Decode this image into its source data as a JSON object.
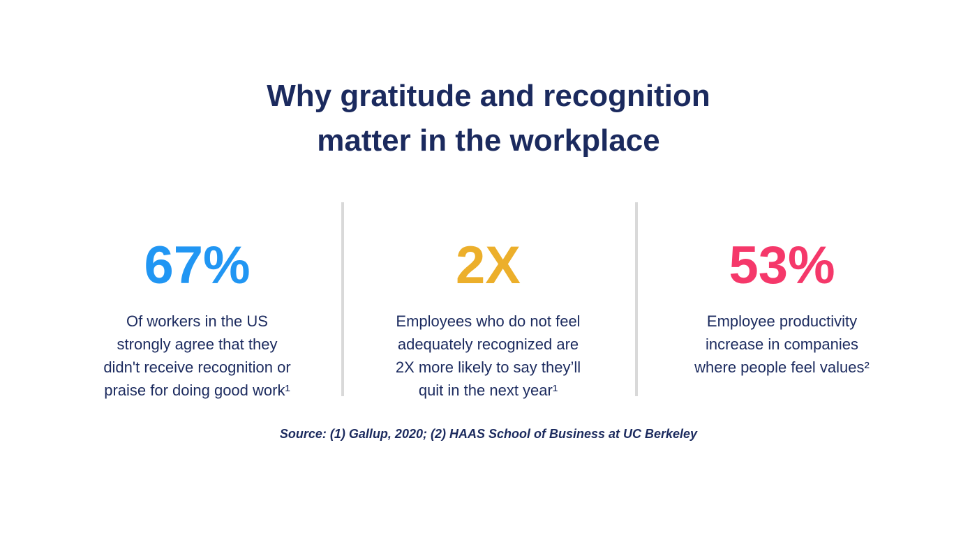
{
  "title": {
    "line1": "Why gratitude and recognition",
    "line2": "matter in the workplace"
  },
  "stats": [
    {
      "value": "67%",
      "color": "#2196f3",
      "desc": [
        "Of workers in the US",
        "strongly agree that they",
        "didn't receive recognition or",
        "praise for doing good work¹"
      ]
    },
    {
      "value": "2X",
      "color": "#ecaf2b",
      "desc": [
        "Employees who do not feel",
        "adequately recognized are",
        "2X more likely to say they’ll",
        "quit in the next year¹"
      ]
    },
    {
      "value": "53%",
      "color": "#f5386a",
      "desc": [
        "Employee productivity",
        "increase in companies",
        "where people feel values²"
      ]
    }
  ],
  "source": "Source: (1) Gallup, 2020; (2) HAAS School of Business at UC Berkeley",
  "colors": {
    "text": "#1b2a5e",
    "divider": "#d9d9d9"
  }
}
